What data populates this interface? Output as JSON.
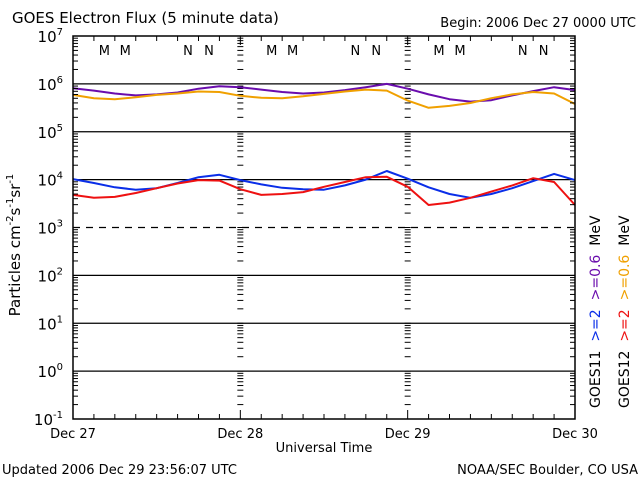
{
  "chart_data": {
    "type": "line",
    "title": "GOES Electron Flux (5 minute data)",
    "begin_label": "Begin: 2006 Dec 27 0000 UTC",
    "xlabel": "Universal Time",
    "ylabel": "Particles cm⁻²s⁻¹sr⁻¹",
    "ylabel_parts": {
      "base": "Particles cm",
      "exp1": "-2",
      "mid1": "s",
      "exp2": "-1",
      "mid2": "sr",
      "exp3": "-1"
    },
    "yscale": "log",
    "ylim": [
      0.1,
      10000000
    ],
    "y_ticks": [
      {
        "value": 7,
        "base": "10",
        "exp": "7"
      },
      {
        "value": 6,
        "base": "10",
        "exp": "6"
      },
      {
        "value": 5,
        "base": "10",
        "exp": "5"
      },
      {
        "value": 4,
        "base": "10",
        "exp": "4"
      },
      {
        "value": 3,
        "base": "10",
        "exp": "3"
      },
      {
        "value": 2,
        "base": "10",
        "exp": "2"
      },
      {
        "value": 1,
        "base": "10",
        "exp": "1"
      },
      {
        "value": 0,
        "base": "10",
        "exp": "0"
      },
      {
        "value": -1,
        "base": "10",
        "exp": "-1"
      }
    ],
    "xlim_hours": [
      0,
      72
    ],
    "x_ticks": [
      {
        "hour": 0,
        "label": "Dec 27"
      },
      {
        "hour": 24,
        "label": "Dec 28"
      },
      {
        "hour": 48,
        "label": "Dec 29"
      },
      {
        "hour": 72,
        "label": "Dec 30"
      }
    ],
    "minor_tick_hours": 3,
    "grid": "horizontal at 10^6, 10^5, 10^4 solid; 10^3 dashed; 10^2, 10^1, 10^0 solid",
    "threshold_line": {
      "log10": 3,
      "style": "dashed"
    },
    "solid_lines_log10": [
      6,
      5,
      4,
      2,
      1,
      0
    ],
    "day_markers_hours": [
      24,
      48
    ],
    "series": [
      {
        "name": "GOES11 >=0.6 MeV",
        "color": "#6a0dad",
        "x_hours": [
          0,
          3,
          6,
          9,
          12,
          15,
          18,
          21,
          24,
          27,
          30,
          33,
          36,
          39,
          42,
          45,
          48,
          51,
          54,
          57,
          60,
          63,
          66,
          69,
          72
        ],
        "log10_values": [
          5.91,
          5.86,
          5.8,
          5.76,
          5.78,
          5.82,
          5.9,
          5.95,
          5.93,
          5.88,
          5.83,
          5.8,
          5.82,
          5.87,
          5.93,
          6.0,
          5.9,
          5.78,
          5.68,
          5.63,
          5.66,
          5.76,
          5.85,
          5.93,
          5.87
        ]
      },
      {
        "name": "GOES12 >=0.6 MeV",
        "color": "#f0a000",
        "x_hours": [
          0,
          3,
          6,
          9,
          12,
          15,
          18,
          21,
          24,
          27,
          30,
          33,
          36,
          39,
          42,
          45,
          48,
          51,
          54,
          57,
          60,
          63,
          66,
          69,
          72
        ],
        "log10_values": [
          5.77,
          5.7,
          5.68,
          5.72,
          5.77,
          5.8,
          5.84,
          5.83,
          5.75,
          5.71,
          5.7,
          5.74,
          5.79,
          5.84,
          5.88,
          5.86,
          5.65,
          5.5,
          5.54,
          5.6,
          5.7,
          5.78,
          5.83,
          5.8,
          5.58
        ]
      },
      {
        "name": "GOES11 >=2 MeV",
        "color": "#0a2ee8",
        "x_hours": [
          0,
          3,
          6,
          9,
          12,
          15,
          18,
          21,
          24,
          27,
          30,
          33,
          36,
          39,
          42,
          45,
          48,
          51,
          54,
          57,
          60,
          63,
          66,
          69,
          72
        ],
        "log10_values": [
          4.01,
          3.93,
          3.84,
          3.79,
          3.82,
          3.93,
          4.05,
          4.1,
          3.99,
          3.9,
          3.83,
          3.8,
          3.79,
          3.88,
          4.0,
          4.18,
          4.02,
          3.84,
          3.7,
          3.62,
          3.7,
          3.82,
          3.97,
          4.12,
          3.99
        ]
      },
      {
        "name": "GOES12 >=2 MeV",
        "color": "#ee1111",
        "x_hours": [
          0,
          3,
          6,
          9,
          12,
          15,
          18,
          21,
          24,
          27,
          30,
          33,
          36,
          39,
          42,
          45,
          48,
          51,
          54,
          57,
          60,
          63,
          66,
          69,
          72
        ],
        "log10_values": [
          3.68,
          3.62,
          3.64,
          3.72,
          3.82,
          3.92,
          3.99,
          3.98,
          3.8,
          3.68,
          3.7,
          3.74,
          3.85,
          3.95,
          4.05,
          4.06,
          3.85,
          3.47,
          3.52,
          3.62,
          3.75,
          3.88,
          4.03,
          3.95,
          3.47
        ]
      }
    ],
    "eclipse_markers": [
      {
        "label": "M",
        "hour": 4.5,
        "color": "#ee1111"
      },
      {
        "label": "M",
        "hour": 7.5,
        "color": "#0a2ee8"
      },
      {
        "label": "N",
        "hour": 16.5,
        "color": "#ee1111"
      },
      {
        "label": "N",
        "hour": 19.5,
        "color": "#0a2ee8"
      },
      {
        "label": "M",
        "hour": 28.5,
        "color": "#ee1111"
      },
      {
        "label": "M",
        "hour": 31.5,
        "color": "#0a2ee8"
      },
      {
        "label": "N",
        "hour": 40.5,
        "color": "#ee1111"
      },
      {
        "label": "N",
        "hour": 43.5,
        "color": "#0a2ee8"
      },
      {
        "label": "M",
        "hour": 52.5,
        "color": "#ee1111"
      },
      {
        "label": "M",
        "hour": 55.5,
        "color": "#0a2ee8"
      },
      {
        "label": "N",
        "hour": 64.5,
        "color": "#ee1111"
      },
      {
        "label": "N",
        "hour": 67.5,
        "color": "#0a2ee8"
      }
    ],
    "legend": {
      "placement": "right (rotated vertical)",
      "columns": [
        {
          "sat": "GOES11",
          "hi": {
            "text": ">=2",
            "color": "#0a2ee8"
          },
          "lo": {
            "text": ">=0.6",
            "color": "#6a0dad"
          },
          "unit": "MeV"
        },
        {
          "sat": "GOES12",
          "hi": {
            "text": ">=2",
            "color": "#ee1111"
          },
          "lo": {
            "text": ">=0.6",
            "color": "#f0a000"
          },
          "unit": "MeV"
        }
      ]
    }
  },
  "footer": {
    "updated": "Updated 2006 Dec 29 23:56:07 UTC",
    "source": "NOAA/SEC Boulder, CO USA"
  }
}
